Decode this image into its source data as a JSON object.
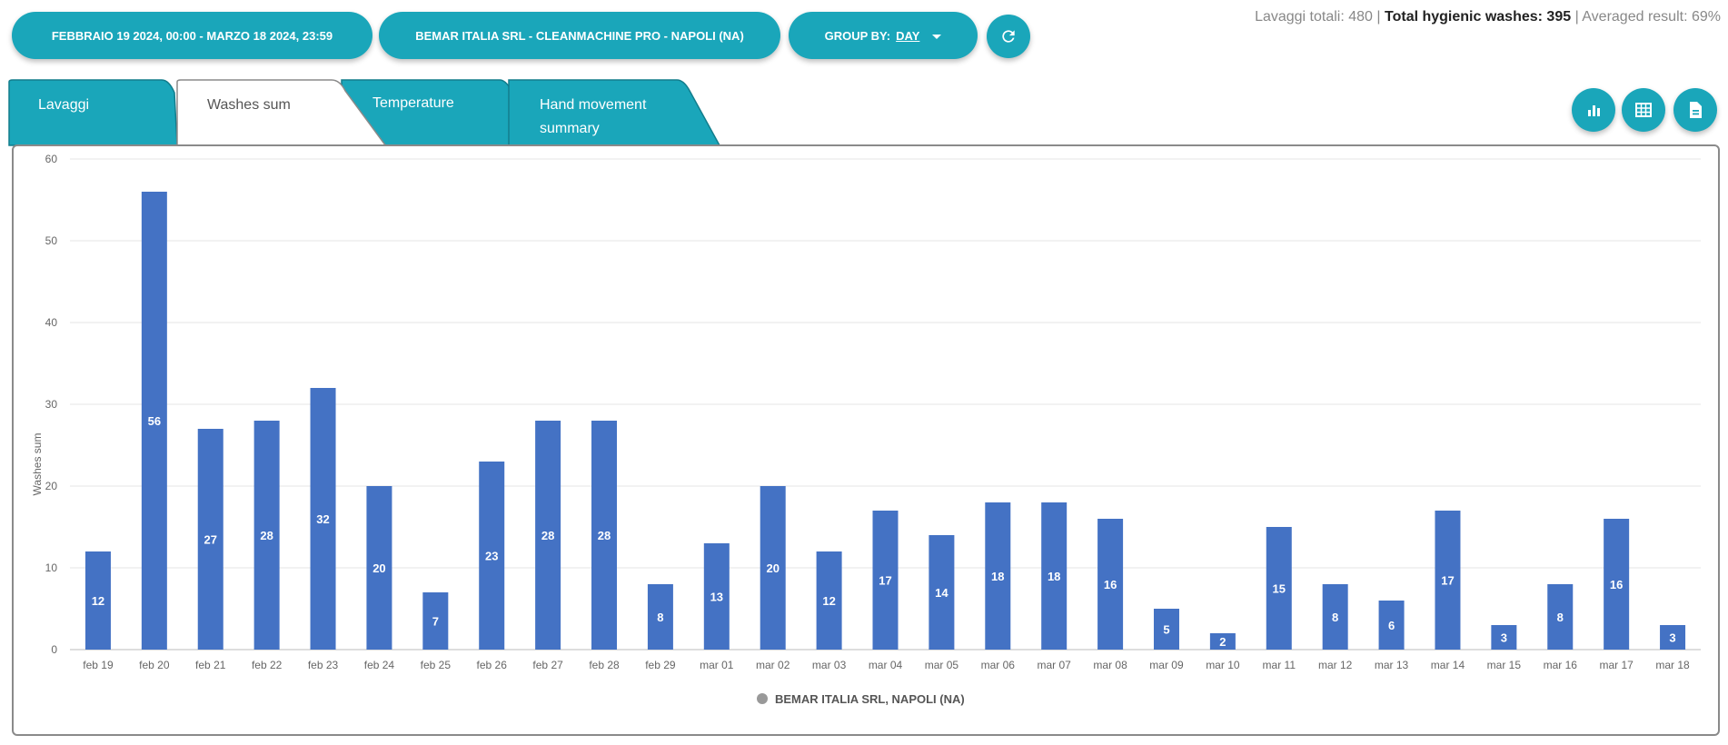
{
  "toolbar": {
    "date_range": "FEBBRAIO 19 2024, 00:00 - MARZO 18 2024, 23:59",
    "company": "BEMAR ITALIA SRL - CLEANMACHINE PRO - NAPOLI (NA)",
    "group_by_label": "GROUP BY:",
    "group_by_value": "DAY",
    "refresh_icon": "refresh-icon"
  },
  "totals": {
    "lavaggi_label": "Lavaggi totali:",
    "lavaggi_value": "480",
    "hygienic_label": "Total hygienic washes:",
    "hygienic_value": "395",
    "averaged_label": "Averaged result:",
    "averaged_value": "69%"
  },
  "tabs": [
    {
      "label": "Lavaggi",
      "active": false
    },
    {
      "label": "Washes sum",
      "active": true
    },
    {
      "label": "Temperature",
      "active": false
    },
    {
      "label": "Hand movement",
      "label2": "summary",
      "active": false
    }
  ],
  "view_buttons": [
    "bar-chart-icon",
    "table-icon",
    "export-file-icon"
  ],
  "colors": {
    "accent": "#1aa6ba",
    "bar": "#4472c4"
  },
  "chart_data": {
    "type": "bar",
    "ylabel": "Washes sum",
    "xlabel": "",
    "ylim": [
      0,
      60
    ],
    "yticks": [
      0,
      10,
      20,
      30,
      40,
      50,
      60
    ],
    "grid": true,
    "legend_position": "bottom",
    "categories": [
      "feb 19",
      "feb 20",
      "feb 21",
      "feb 22",
      "feb 23",
      "feb 24",
      "feb 25",
      "feb 26",
      "feb 27",
      "feb 28",
      "feb 29",
      "mar 01",
      "mar 02",
      "mar 03",
      "mar 04",
      "mar 05",
      "mar 06",
      "mar 07",
      "mar 08",
      "mar 09",
      "mar 10",
      "mar 11",
      "mar 12",
      "mar 13",
      "mar 14",
      "mar 15",
      "mar 16",
      "mar 17",
      "mar 18"
    ],
    "series": [
      {
        "name": "BEMAR ITALIA SRL, NAPOLI (NA)",
        "values": [
          12,
          56,
          27,
          28,
          32,
          20,
          7,
          23,
          28,
          28,
          8,
          13,
          20,
          12,
          17,
          14,
          18,
          18,
          16,
          5,
          2,
          15,
          8,
          6,
          17,
          3,
          8,
          16,
          3
        ]
      }
    ]
  }
}
